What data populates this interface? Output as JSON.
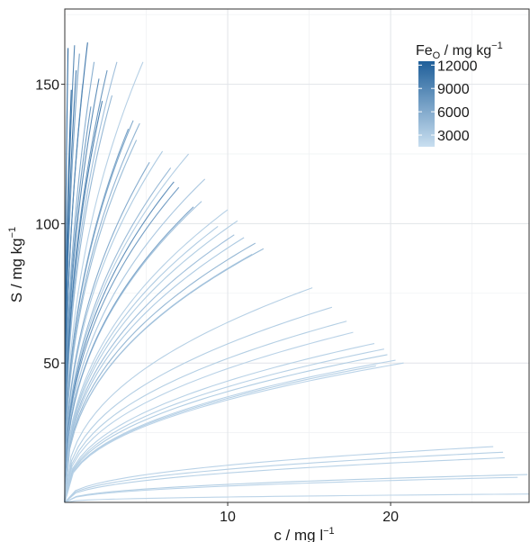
{
  "chart_data": {
    "type": "line",
    "title": "",
    "xlabel": "c / mg l",
    "xlabel_sup": "−1",
    "ylabel": "S / mg kg",
    "ylabel_sup": "−1",
    "xlim": [
      0,
      28.5
    ],
    "ylim": [
      0,
      177
    ],
    "x_ticks": [
      10,
      20
    ],
    "y_ticks": [
      50,
      100,
      150
    ],
    "grid": true,
    "legend": {
      "title": "Fe",
      "title_sub": "O",
      "title_rest": " / mg kg",
      "title_sup": "−1",
      "placement": "top-right",
      "labels": [
        "12000",
        "9000",
        "6000",
        "3000"
      ],
      "values": [
        12000,
        9000,
        6000,
        3000
      ],
      "range": [
        1500,
        12500
      ],
      "color_low": "#c9dff0",
      "color_high": "#1f5f9a"
    },
    "series": [
      {
        "end": [
          0.2,
          163
        ],
        "fe": 11800
      },
      {
        "end": [
          0.6,
          164
        ],
        "fe": 9500
      },
      {
        "end": [
          1.4,
          165
        ],
        "fe": 11000
      },
      {
        "end": [
          0.9,
          161
        ],
        "fe": 7000
      },
      {
        "end": [
          0.7,
          155
        ],
        "fe": 10500
      },
      {
        "end": [
          1.8,
          158
        ],
        "fe": 6000
      },
      {
        "end": [
          3.2,
          158
        ],
        "fe": 4500
      },
      {
        "end": [
          4.8,
          158
        ],
        "fe": 3000
      },
      {
        "end": [
          2.6,
          155
        ],
        "fe": 8000
      },
      {
        "end": [
          2.1,
          152
        ],
        "fe": 9000
      },
      {
        "end": [
          1.1,
          150
        ],
        "fe": 8500
      },
      {
        "end": [
          2.9,
          146
        ],
        "fe": 5200
      },
      {
        "end": [
          2.3,
          144
        ],
        "fe": 10000
      },
      {
        "end": [
          1.6,
          142
        ],
        "fe": 7500
      },
      {
        "end": [
          0.4,
          148
        ],
        "fe": 12000
      },
      {
        "end": [
          4.2,
          137
        ],
        "fe": 6500
      },
      {
        "end": [
          4.6,
          136
        ],
        "fe": 5500
      },
      {
        "end": [
          3.9,
          134
        ],
        "fe": 7000
      },
      {
        "end": [
          4.4,
          130
        ],
        "fe": 4800
      },
      {
        "end": [
          6.0,
          126
        ],
        "fe": 3500
      },
      {
        "end": [
          7.6,
          125
        ],
        "fe": 3200
      },
      {
        "end": [
          5.2,
          122
        ],
        "fe": 6200
      },
      {
        "end": [
          6.5,
          120
        ],
        "fe": 5000
      },
      {
        "end": [
          6.7,
          115
        ],
        "fe": 8800
      },
      {
        "end": [
          7.0,
          113
        ],
        "fe": 7400
      },
      {
        "end": [
          8.6,
          116
        ],
        "fe": 3800
      },
      {
        "end": [
          8.4,
          108
        ],
        "fe": 4200
      },
      {
        "end": [
          7.9,
          106
        ],
        "fe": 6800
      },
      {
        "end": [
          10.0,
          105
        ],
        "fe": 3000
      },
      {
        "end": [
          10.6,
          101
        ],
        "fe": 3300
      },
      {
        "end": [
          10.4,
          96
        ],
        "fe": 4500
      },
      {
        "end": [
          11.0,
          95
        ],
        "fe": 3600
      },
      {
        "end": [
          11.7,
          93
        ],
        "fe": 5200
      },
      {
        "end": [
          12.2,
          91
        ],
        "fe": 4800
      },
      {
        "end": [
          11.5,
          89
        ],
        "fe": 3900
      },
      {
        "end": [
          9.4,
          99
        ],
        "fe": 3400
      },
      {
        "end": [
          15.2,
          77
        ],
        "fe": 3000
      },
      {
        "end": [
          16.4,
          70
        ],
        "fe": 3200
      },
      {
        "end": [
          17.3,
          65
        ],
        "fe": 3100
      },
      {
        "end": [
          17.7,
          61
        ],
        "fe": 2800
      },
      {
        "end": [
          19.0,
          57
        ],
        "fe": 2900
      },
      {
        "end": [
          19.6,
          55
        ],
        "fe": 3000
      },
      {
        "end": [
          19.8,
          53
        ],
        "fe": 3300
      },
      {
        "end": [
          20.3,
          51
        ],
        "fe": 2800
      },
      {
        "end": [
          19.1,
          49
        ],
        "fe": 3000
      },
      {
        "end": [
          20.8,
          50
        ],
        "fe": 2700
      },
      {
        "end": [
          26.3,
          20
        ],
        "fe": 2800
      },
      {
        "end": [
          26.9,
          18
        ],
        "fe": 3000
      },
      {
        "end": [
          27.0,
          16
        ],
        "fe": 2900
      },
      {
        "end": [
          28.4,
          10
        ],
        "fe": 3100
      },
      {
        "end": [
          27.8,
          9
        ],
        "fe": 2700
      },
      {
        "end": [
          28.5,
          3
        ],
        "fe": 2600
      }
    ]
  }
}
